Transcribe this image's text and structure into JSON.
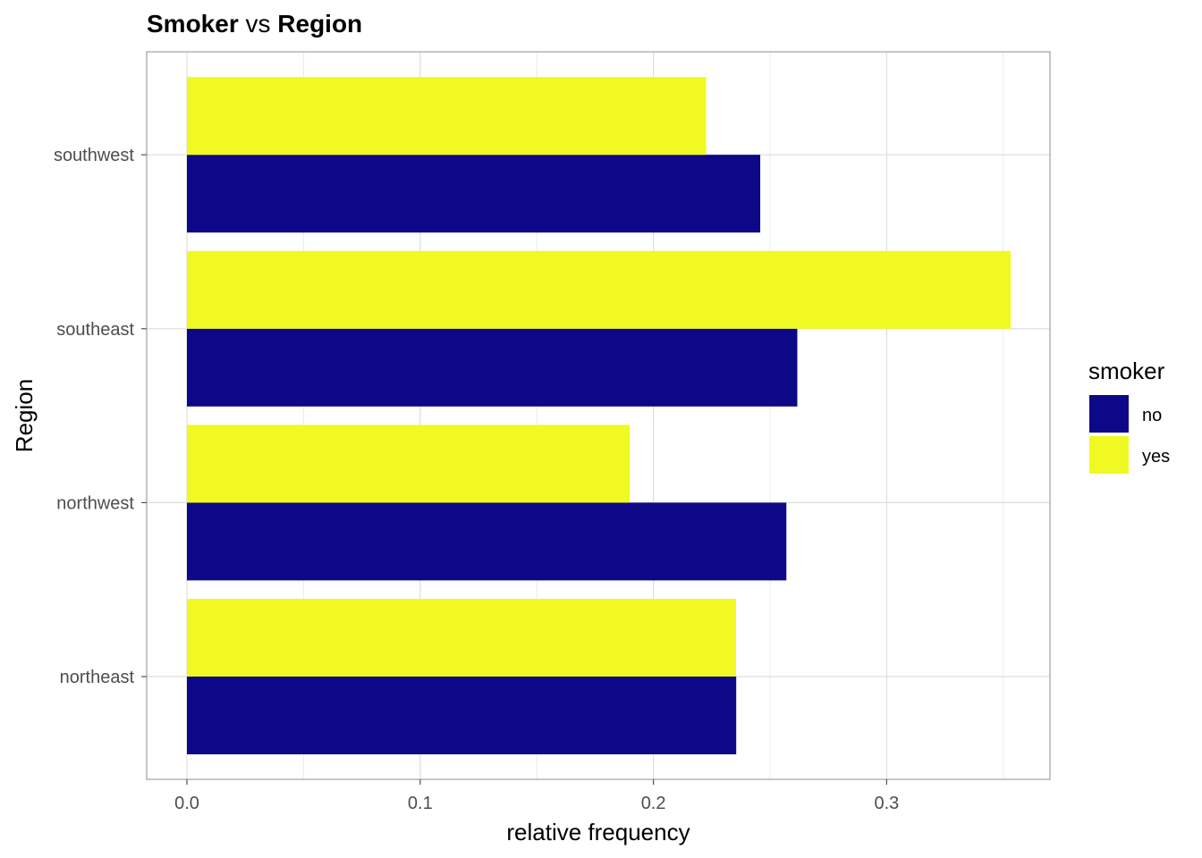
{
  "chart_data": {
    "type": "bar",
    "orientation": "horizontal",
    "title": {
      "part1": "Smoker",
      "part2": " vs ",
      "part3": "Region"
    },
    "xlabel": "relative frequency",
    "ylabel": "Region",
    "xlim": [
      0,
      0.37
    ],
    "x_ticks": [
      0.0,
      0.1,
      0.2,
      0.3
    ],
    "x_tick_labels": [
      "0.0",
      "0.1",
      "0.2",
      "0.3"
    ],
    "categories": [
      "northeast",
      "northwest",
      "southeast",
      "southwest"
    ],
    "series": [
      {
        "name": "no",
        "color": "#0d0887",
        "values": [
          0.2355,
          0.257,
          0.2617,
          0.2458
        ]
      },
      {
        "name": "yes",
        "color": "#f0f921",
        "values": [
          0.2354,
          0.1898,
          0.3532,
          0.2226
        ]
      }
    ],
    "legend": {
      "title": "smoker",
      "position": "right"
    },
    "grid": true
  }
}
